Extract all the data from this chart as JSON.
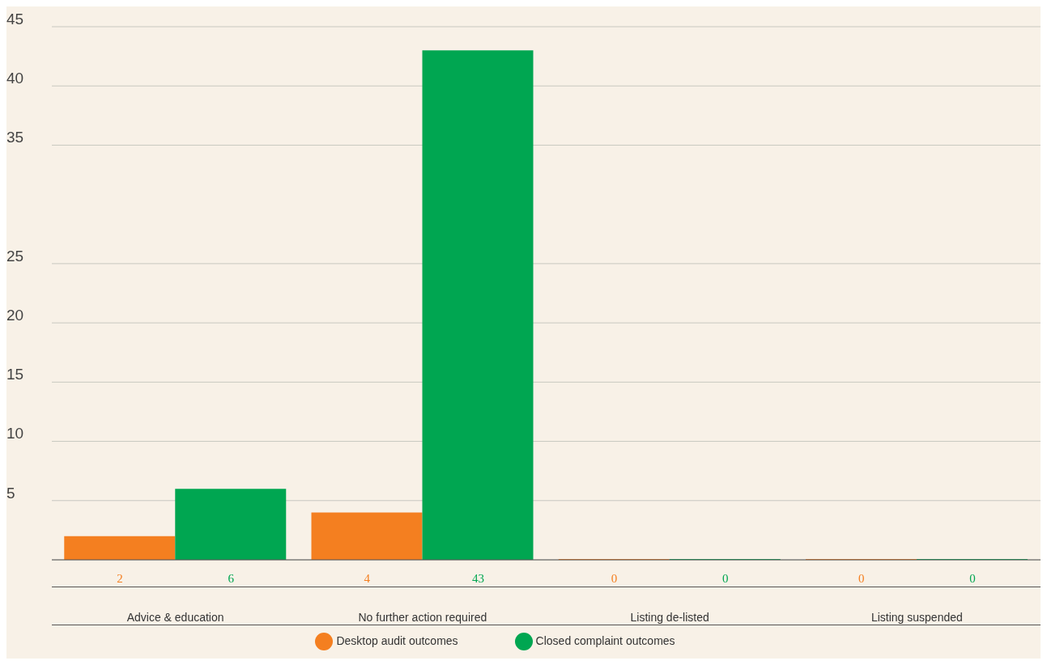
{
  "chart_data": {
    "type": "bar",
    "categories": [
      "Advice & education",
      "No further action required",
      "Listing de-listed",
      "Listing suspended"
    ],
    "series": [
      {
        "name": "Desktop audit outcomes",
        "color": "#f47f20",
        "values": [
          2,
          4,
          0,
          0
        ]
      },
      {
        "name": "Closed complaint outcomes",
        "color": "#00a651",
        "values": [
          6,
          43,
          0,
          0
        ]
      }
    ],
    "ylim": [
      0,
      45
    ],
    "yticks": [
      5,
      10,
      15,
      20,
      25,
      35,
      40,
      45
    ],
    "grid": "y",
    "legend": "bottom",
    "data_labels": true
  }
}
